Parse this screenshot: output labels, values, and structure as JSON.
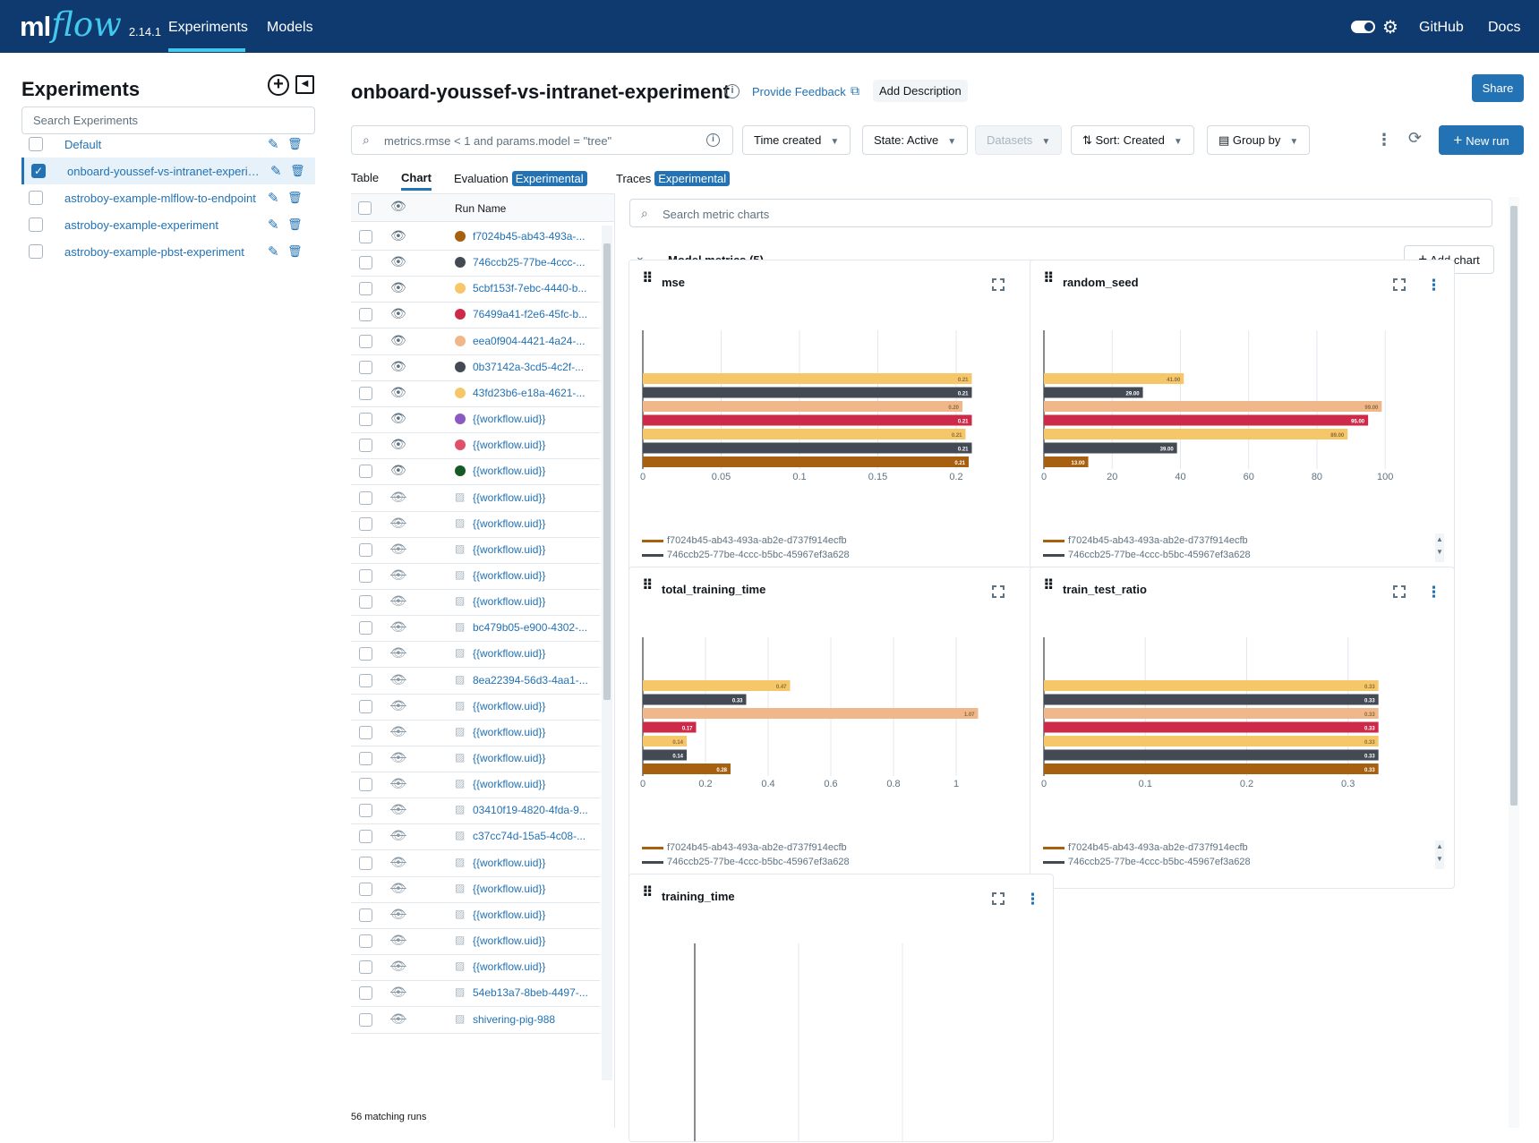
{
  "topbar": {
    "logo_ml": "ml",
    "logo_flow": "flow",
    "version": "2.14.1",
    "nav": {
      "experiments": "Experiments",
      "models": "Models",
      "github": "GitHub",
      "docs": "Docs"
    }
  },
  "sidebar": {
    "title": "Experiments",
    "search_placeholder": "Search Experiments",
    "items": [
      {
        "label": "Default",
        "checked": false
      },
      {
        "label": "onboard-youssef-vs-intranet-experiment",
        "checked": true
      },
      {
        "label": "astroboy-example-mlflow-to-endpoint",
        "checked": false
      },
      {
        "label": "astroboy-example-experiment",
        "checked": false
      },
      {
        "label": "astroboy-example-pbst-experiment",
        "checked": false
      }
    ]
  },
  "header": {
    "title": "onboard-youssef-vs-intranet-experiment",
    "feedback": "Provide Feedback",
    "add_description": "Add Description",
    "share": "Share"
  },
  "filters": {
    "search_placeholder": "metrics.rmse < 1 and params.model = \"tree\"",
    "time_created": "Time created",
    "state": "State: Active",
    "datasets": "Datasets",
    "sort": "Sort: Created",
    "group_by": "Group by",
    "new_run": "New run"
  },
  "tabs": {
    "table": "Table",
    "chart": "Chart",
    "evaluation": "Evaluation",
    "traces": "Traces",
    "experimental": "Experimental"
  },
  "runs": {
    "header_name": "Run Name",
    "footer": "56 matching runs",
    "rows": [
      {
        "name": "f7024b45-ab43-493a-...",
        "visible": true,
        "color": "#a7600f"
      },
      {
        "name": "746ccb25-77be-4ccc-...",
        "visible": true,
        "color": "#434a54"
      },
      {
        "name": "5cbf153f-7ebc-4440-b...",
        "visible": true,
        "color": "#f6c768"
      },
      {
        "name": "76499a41-f2e6-45fc-b...",
        "visible": true,
        "color": "#cc2a48"
      },
      {
        "name": "eea0f904-4421-4a24-...",
        "visible": true,
        "color": "#f0b78a"
      },
      {
        "name": "0b37142a-3cd5-4c2f-...",
        "visible": true,
        "color": "#434a54"
      },
      {
        "name": "43fd23b6-e18a-4621-...",
        "visible": true,
        "color": "#f6c768"
      },
      {
        "name": "{{workflow.uid}}",
        "visible": true,
        "color": "#8a5ac2"
      },
      {
        "name": "{{workflow.uid}}",
        "visible": true,
        "color": "#e05068"
      },
      {
        "name": "{{workflow.uid}}",
        "visible": true,
        "color": "#145a22"
      },
      {
        "name": "{{workflow.uid}}",
        "visible": false
      },
      {
        "name": "{{workflow.uid}}",
        "visible": false
      },
      {
        "name": "{{workflow.uid}}",
        "visible": false
      },
      {
        "name": "{{workflow.uid}}",
        "visible": false
      },
      {
        "name": "{{workflow.uid}}",
        "visible": false
      },
      {
        "name": "bc479b05-e900-4302-...",
        "visible": false
      },
      {
        "name": "{{workflow.uid}}",
        "visible": false
      },
      {
        "name": "8ea22394-56d3-4aa1-...",
        "visible": false
      },
      {
        "name": "{{workflow.uid}}",
        "visible": false
      },
      {
        "name": "{{workflow.uid}}",
        "visible": false
      },
      {
        "name": "{{workflow.uid}}",
        "visible": false
      },
      {
        "name": "{{workflow.uid}}",
        "visible": false
      },
      {
        "name": "03410f19-4820-4fda-9...",
        "visible": false
      },
      {
        "name": "c37cc74d-15a5-4c08-...",
        "visible": false
      },
      {
        "name": "{{workflow.uid}}",
        "visible": false
      },
      {
        "name": "{{workflow.uid}}",
        "visible": false
      },
      {
        "name": "{{workflow.uid}}",
        "visible": false
      },
      {
        "name": "{{workflow.uid}}",
        "visible": false
      },
      {
        "name": "{{workflow.uid}}",
        "visible": false
      },
      {
        "name": "54eb13a7-8beb-4497-...",
        "visible": false
      },
      {
        "name": "shivering-pig-988",
        "visible": false
      }
    ]
  },
  "charts_panel": {
    "search_placeholder": "Search metric charts",
    "section_title": "Model metrics (5)",
    "add_chart": "Add chart",
    "legend": [
      {
        "name": "f7024b45-ab43-493a-ab2e-d737f914ecfb",
        "color": "#a7600f"
      },
      {
        "name": "746ccb25-77be-4ccc-b5bc-45967ef3a628",
        "color": "#434a54"
      }
    ]
  },
  "chart_data": [
    {
      "type": "bar",
      "title": "mse",
      "xlim": [
        0,
        0.22
      ],
      "ticks": [
        0,
        0.05,
        0.1,
        0.15,
        0.2
      ],
      "bars": [
        {
          "value": 0.21,
          "label": "0.21",
          "color": "#f6c768"
        },
        {
          "value": 0.21,
          "label": "0.21",
          "color": "#434a54"
        },
        {
          "value": 0.204,
          "label": "0.20",
          "color": "#f0b78a"
        },
        {
          "value": 0.21,
          "label": "0.21",
          "color": "#cc2a48"
        },
        {
          "value": 0.206,
          "label": "0.21",
          "color": "#f6c768"
        },
        {
          "value": 0.21,
          "label": "0.21",
          "color": "#434a54"
        },
        {
          "value": 0.208,
          "label": "0.21",
          "color": "#a7600f"
        }
      ]
    },
    {
      "type": "bar",
      "title": "random_seed",
      "xlim": [
        0,
        101
      ],
      "ticks": [
        0,
        20,
        40,
        60,
        80,
        100
      ],
      "bars": [
        {
          "value": 41,
          "label": "41.00",
          "color": "#f6c768"
        },
        {
          "value": 29,
          "label": "29.00",
          "color": "#434a54"
        },
        {
          "value": 99,
          "label": "99.00",
          "color": "#f0b78a"
        },
        {
          "value": 95,
          "label": "95.00",
          "color": "#cc2a48"
        },
        {
          "value": 89,
          "label": "89.00",
          "color": "#f6c768"
        },
        {
          "value": 39,
          "label": "39.00",
          "color": "#434a54"
        },
        {
          "value": 13,
          "label": "13.00",
          "color": "#a7600f"
        }
      ]
    },
    {
      "type": "bar",
      "title": "total_training_time",
      "xlim": [
        0,
        1.1
      ],
      "ticks": [
        0,
        0.2,
        0.4,
        0.6,
        0.8,
        1
      ],
      "bars": [
        {
          "value": 0.47,
          "label": "0.47",
          "color": "#f6c768"
        },
        {
          "value": 0.33,
          "label": "0.33",
          "color": "#434a54"
        },
        {
          "value": 1.07,
          "label": "1.07",
          "color": "#f0b78a"
        },
        {
          "value": 0.17,
          "label": "0.17",
          "color": "#cc2a48"
        },
        {
          "value": 0.14,
          "label": "0.14",
          "color": "#f6c768"
        },
        {
          "value": 0.14,
          "label": "0.14",
          "color": "#434a54"
        },
        {
          "value": 0.28,
          "label": "0.28",
          "color": "#a7600f"
        }
      ]
    },
    {
      "type": "bar",
      "title": "train_test_ratio",
      "xlim": [
        0,
        0.34
      ],
      "ticks": [
        0,
        0.1,
        0.2,
        0.3
      ],
      "bars": [
        {
          "value": 0.33,
          "label": "0.33",
          "color": "#f6c768"
        },
        {
          "value": 0.33,
          "label": "0.33",
          "color": "#434a54"
        },
        {
          "value": 0.33,
          "label": "0.33",
          "color": "#f0b78a"
        },
        {
          "value": 0.33,
          "label": "0.33",
          "color": "#cc2a48"
        },
        {
          "value": 0.33,
          "label": "0.33",
          "color": "#f6c768"
        },
        {
          "value": 0.33,
          "label": "0.33",
          "color": "#434a54"
        },
        {
          "value": 0.33,
          "label": "0.33",
          "color": "#a7600f"
        }
      ]
    },
    {
      "type": "bar",
      "title": "training_time",
      "bars": []
    }
  ]
}
